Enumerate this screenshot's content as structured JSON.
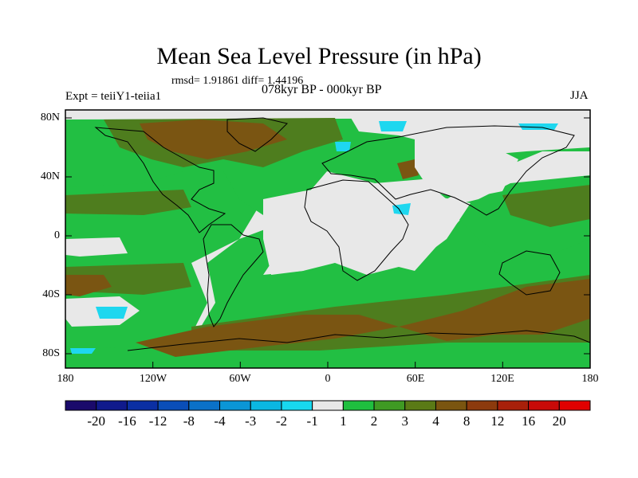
{
  "title": "Mean Sea Level Pressure (in hPa)",
  "stats": "rmsd= 1.91861 diff= 1.44196",
  "experiment": "Expt = teiiY1-teiia1",
  "period": "078kyr BP - 000kyr BP",
  "season": "JJA",
  "map": {
    "lat_labels": [
      "80N",
      "40N",
      "0",
      "40S",
      "80S"
    ],
    "lon_labels": [
      "180",
      "120W",
      "60W",
      "0",
      "60E",
      "120E",
      "180"
    ]
  },
  "colorbar": {
    "labels": [
      "-20",
      "-16",
      "-12",
      "-8",
      "-4",
      "-3",
      "-2",
      "-1",
      "1",
      "2",
      "3",
      "4",
      "8",
      "12",
      "16",
      "20"
    ],
    "colors": [
      "#1a0a6b",
      "#101a8c",
      "#0b2fa3",
      "#0a4eb8",
      "#0b71c8",
      "#0b96d6",
      "#0bb7e2",
      "#18d8ef",
      "#e8e8e8",
      "#1fbf3f",
      "#3f9a23",
      "#5a7a16",
      "#7a5510",
      "#8c3a0d",
      "#a8200a",
      "#c80a08",
      "#e00000"
    ]
  },
  "colors": {
    "neutral": "#e8e8e8",
    "green_light": "#22bf43",
    "green_dark": "#4e7d1e",
    "brown": "#7a5512",
    "cyan": "#1ed7ef",
    "coast": "#000000"
  }
}
